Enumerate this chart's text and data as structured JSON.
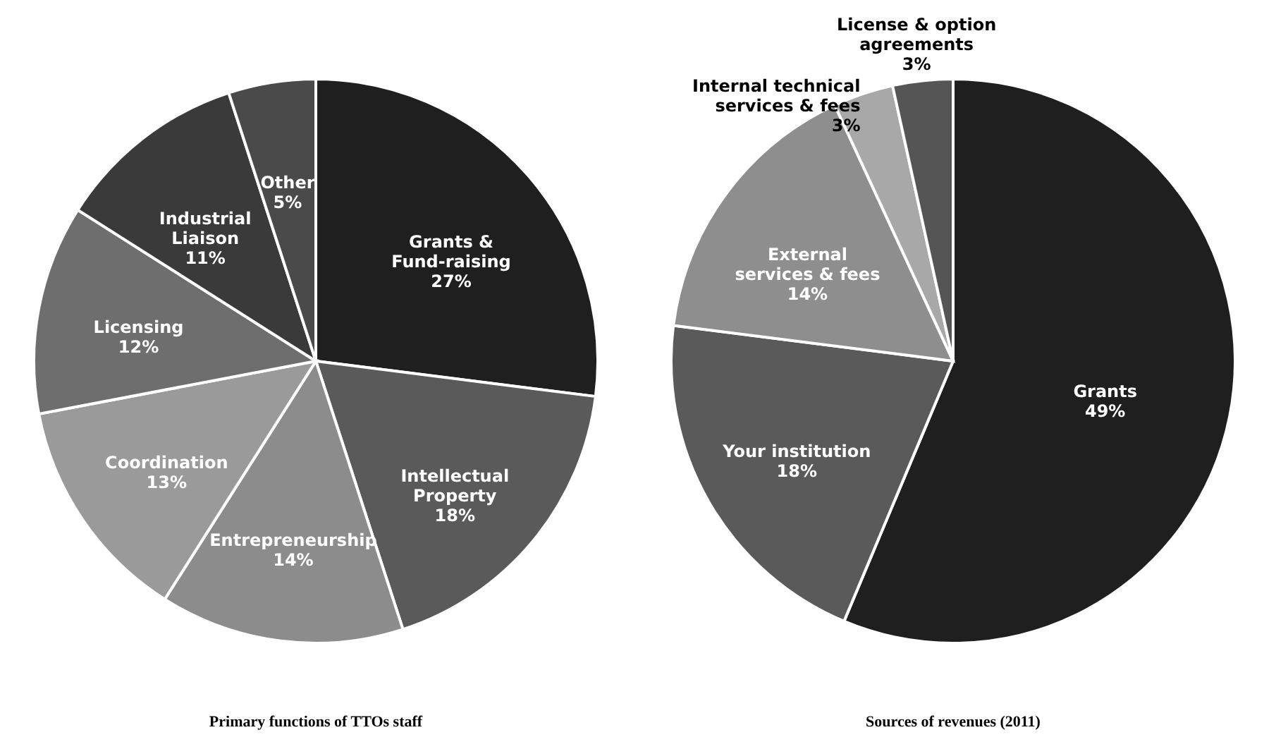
{
  "chart_data": [
    {
      "type": "pie",
      "title": "Primary functions of TTOs staff",
      "categories": [
        "Grants &\nFund-raising",
        "Intellectual\nProperty",
        "Entrepreneurship",
        "Coordination",
        "Licensing",
        "Industrial\nLiaison",
        "Other"
      ],
      "values": [
        27,
        18,
        14,
        13,
        12,
        11,
        5
      ],
      "value_labels": [
        "27%",
        "18%",
        "14%",
        "13%",
        "12%",
        "11%",
        "5%"
      ],
      "colors": [
        "#1f1f1f",
        "#5a5a5a",
        "#8c8c8c",
        "#9a9a9a",
        "#6e6e6e",
        "#3a3a3a",
        "#4a4a4a"
      ]
    },
    {
      "type": "pie",
      "title": "Sources of revenues (2011)",
      "categories": [
        "Grants",
        "Your institution",
        "External\nservices & fees",
        "Internal technical\nservices & fees",
        "License & option\nagreements"
      ],
      "values": [
        49,
        18,
        14,
        3,
        3
      ],
      "value_labels": [
        "49%",
        "18%",
        "14%",
        "3%",
        "3%"
      ],
      "colors": [
        "#1f1f1f",
        "#5a5a5a",
        "#8e8e8e",
        "#a8a8a8",
        "#555555"
      ]
    }
  ]
}
